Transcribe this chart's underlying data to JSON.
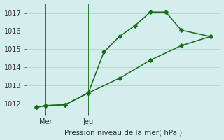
{
  "background_color": "#d4eeee",
  "grid_color": "#b8d8d0",
  "line_color": "#1a6b1a",
  "xlabel": "Pression niveau de la mer( hPa )",
  "ylim": [
    1011.5,
    1017.5
  ],
  "yticks": [
    1012,
    1013,
    1014,
    1015,
    1016,
    1017
  ],
  "xlim": [
    0,
    10
  ],
  "xtick_positions": [
    1,
    3.2
  ],
  "xtick_labels": [
    "Mer",
    "Jeu"
  ],
  "upper_x": [
    0.5,
    1.0,
    2.0,
    3.2,
    4.0,
    4.8,
    5.6,
    6.4,
    7.2,
    8.0,
    9.5
  ],
  "upper_y": [
    1011.8,
    1011.9,
    1011.95,
    1012.6,
    1014.85,
    1015.7,
    1016.3,
    1017.05,
    1017.05,
    1016.05,
    1015.7
  ],
  "lower_x": [
    0.5,
    1.0,
    2.0,
    3.2,
    4.8,
    6.4,
    8.0,
    9.5
  ],
  "lower_y": [
    1011.8,
    1011.9,
    1011.95,
    1012.6,
    1013.4,
    1014.4,
    1015.2,
    1015.7
  ],
  "vline_positions": [
    1.0,
    3.2
  ]
}
